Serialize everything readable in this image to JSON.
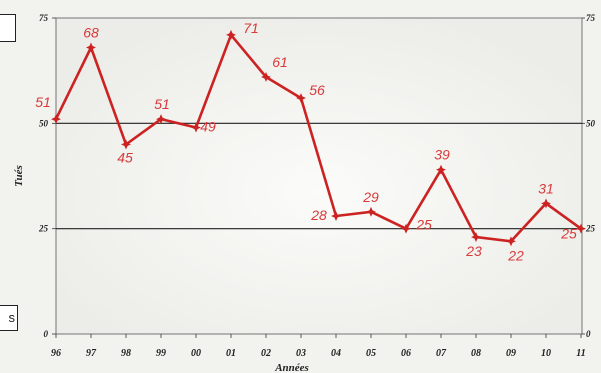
{
  "chart_data": {
    "type": "line",
    "title": "",
    "xlabel": "Années",
    "ylabel": "Tués",
    "categories": [
      "96",
      "97",
      "98",
      "99",
      "00",
      "01",
      "02",
      "03",
      "04",
      "05",
      "06",
      "07",
      "08",
      "09",
      "10",
      "11"
    ],
    "series": [
      {
        "values": [
          51,
          68,
          45,
          51,
          49,
          71,
          61,
          56,
          28,
          29,
          25,
          39,
          23,
          22,
          31,
          25
        ]
      }
    ],
    "ylim": [
      0,
      75
    ],
    "yticks": [
      0,
      25,
      50,
      75
    ],
    "grid": "horizontal at 25 and 50",
    "line_color": "#cc2222",
    "label_color": "#d83a3a"
  },
  "side_boxes": {
    "bottom_text": "s"
  }
}
